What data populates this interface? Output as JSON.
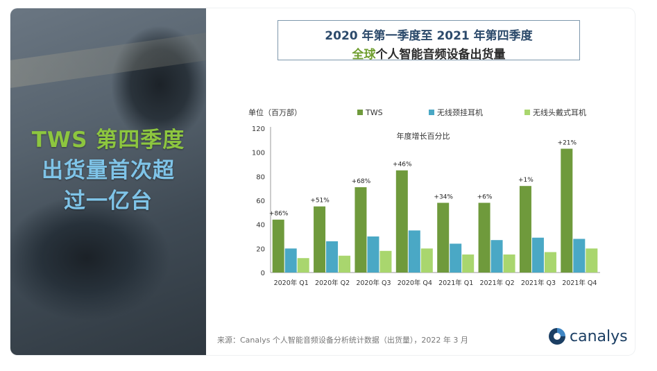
{
  "headline": {
    "line1": "TWS 第四季度",
    "line2": "出货量首次超",
    "line3": "过一亿台"
  },
  "title": {
    "line1": "2020 年第一季度至 2021 年第四季度",
    "line2_highlight": "全球",
    "line2_rest": "个人智能音频设备出货量"
  },
  "footer": "来源：Canalys 个人智能音频设备分析统计数据（出货量），2022 年 3 月",
  "logo": {
    "name": "canalys",
    "icon": "canalys-logo-icon"
  },
  "colors": {
    "tws": "#6f9a3c",
    "neck": "#4aa8c5",
    "headphone": "#a9d66e",
    "title_blue": "#2c4a6b"
  },
  "chart_data": {
    "type": "bar",
    "unit_label": "单位（百万部）",
    "annotation_title": "年度增长百分比",
    "categories": [
      "2020年 Q1",
      "2020年 Q2",
      "2020年 Q3",
      "2020年 Q4",
      "2021年 Q1",
      "2021年 Q2",
      "2021年 Q3",
      "2021年 Q4"
    ],
    "ylim": [
      0,
      120
    ],
    "yticks": [
      0,
      20,
      40,
      60,
      80,
      100,
      120
    ],
    "legend_position": "top",
    "series": [
      {
        "name": "TWS",
        "color": "#6f9a3c",
        "values": [
          44,
          55,
          71,
          85,
          58,
          58,
          72,
          103
        ]
      },
      {
        "name": "无线颈挂耳机",
        "color": "#4aa8c5",
        "values": [
          20,
          26,
          30,
          35,
          24,
          27,
          29,
          28
        ]
      },
      {
        "name": "无线头戴式耳机",
        "color": "#a9d66e",
        "values": [
          12,
          14,
          18,
          20,
          15,
          15,
          17,
          20
        ]
      }
    ],
    "growth_labels": [
      "+86%",
      "+51%",
      "+68%",
      "+46%",
      "+34%",
      "+6%",
      "+1%",
      "+21%"
    ]
  }
}
